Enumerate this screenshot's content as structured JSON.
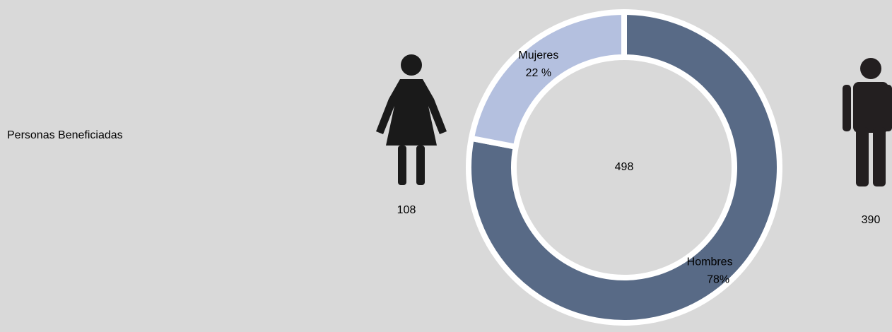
{
  "chart_data": {
    "type": "donut",
    "title": "Personas Beneficiadas",
    "categories": [
      "Hombres",
      "Mujeres"
    ],
    "values": [
      78,
      22
    ],
    "value_labels": [
      "78%",
      "22 %"
    ],
    "colors": [
      "#586a86",
      "#b4c0df"
    ],
    "counts": [
      390,
      108
    ],
    "total": 498
  }
}
